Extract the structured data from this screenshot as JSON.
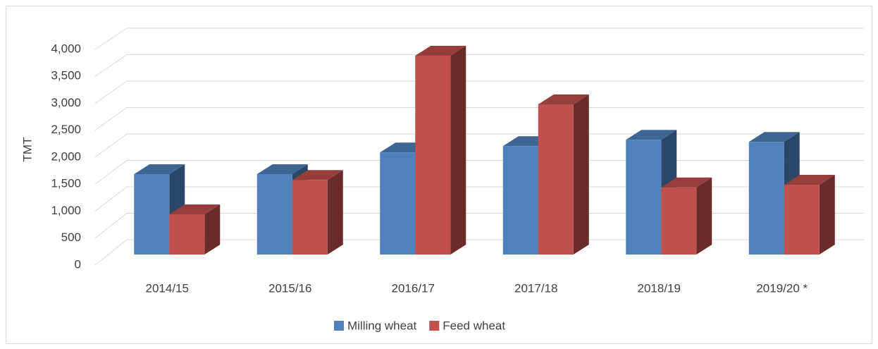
{
  "chart_data": {
    "type": "bar3d",
    "y_label": "TMT",
    "categories": [
      "2014/15",
      "2015/16",
      "2016/17",
      "2017/18",
      "2018/19",
      "2019/20 *"
    ],
    "series": [
      {
        "name": "Milling wheat",
        "color": "#4f81bd",
        "values": [
          1520,
          1520,
          1930,
          2050,
          2170,
          2130
        ]
      },
      {
        "name": "Feed wheat",
        "color": "#c0504d",
        "values": [
          760,
          1410,
          3760,
          2840,
          1270,
          1320
        ]
      }
    ],
    "ylim": [
      0,
      4000
    ],
    "yticks": [
      0,
      500,
      {
        "value": 1000,
        "label": "1,000"
      },
      {
        "value": 1500,
        "label": "1,500"
      },
      {
        "value": 2000,
        "label": "2,000"
      },
      {
        "value": 2500,
        "label": "2,500"
      },
      {
        "value": 3000,
        "label": "3,000"
      },
      {
        "value": 3500,
        "label": "3,500"
      },
      {
        "value": 4000,
        "label": "4,000"
      }
    ],
    "grid": true,
    "legend": "bottom"
  }
}
